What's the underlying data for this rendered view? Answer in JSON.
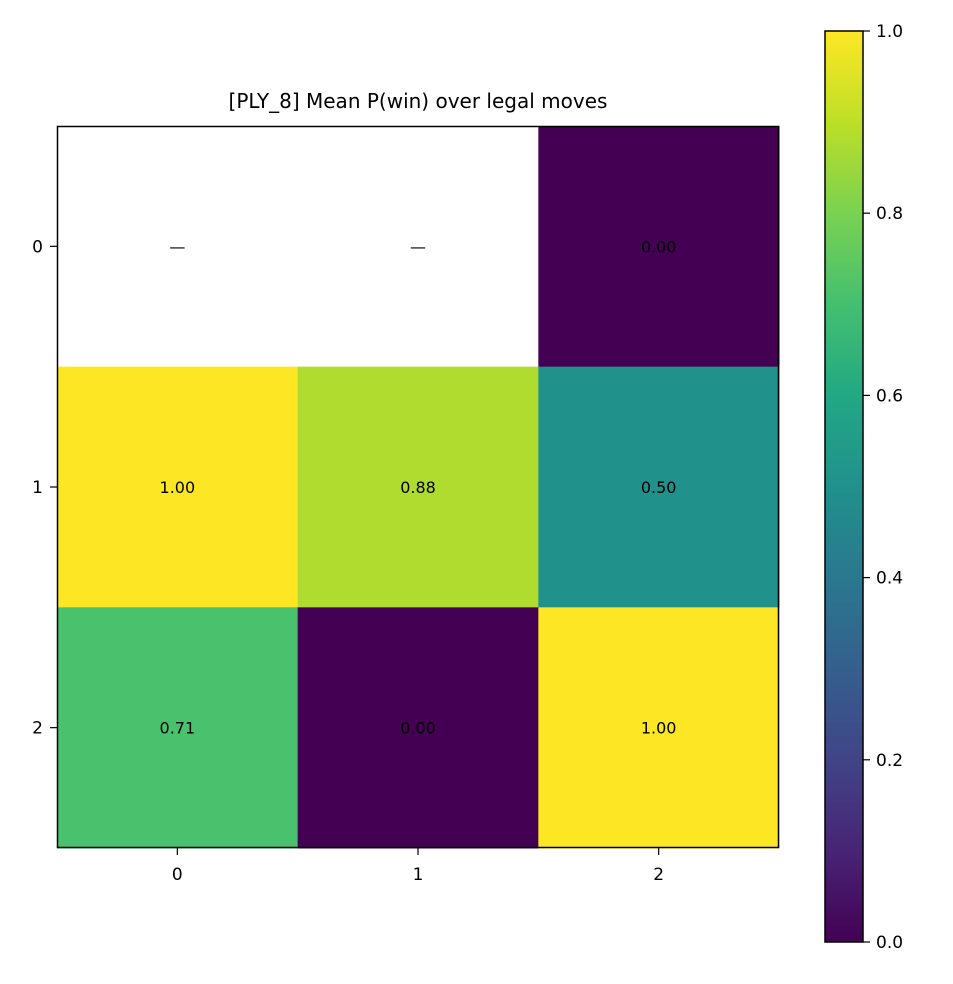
{
  "chart_data": {
    "type": "heatmap",
    "title": "[PLY_8] Mean P(win) over legal moves",
    "xlabel": "",
    "ylabel": "",
    "x_categories": [
      "0",
      "1",
      "2"
    ],
    "y_categories": [
      "0",
      "1",
      "2"
    ],
    "values": [
      [
        null,
        null,
        0.0
      ],
      [
        1.0,
        0.88,
        0.5
      ],
      [
        0.71,
        0.0,
        1.0
      ]
    ],
    "cell_labels": [
      [
        "—",
        "—",
        "0.00"
      ],
      [
        "1.00",
        "0.88",
        "0.50"
      ],
      [
        "0.71",
        "0.00",
        "1.00"
      ]
    ],
    "colormap": "viridis",
    "missing_color": "#ffffff",
    "vmin": 0.0,
    "vmax": 1.0,
    "colorbar": {
      "ticks": [
        0.0,
        0.2,
        0.4,
        0.6,
        0.8,
        1.0
      ],
      "tick_labels": [
        "0.0",
        "0.2",
        "0.4",
        "0.6",
        "0.8",
        "1.0"
      ]
    },
    "grid": false,
    "legend": "none"
  }
}
